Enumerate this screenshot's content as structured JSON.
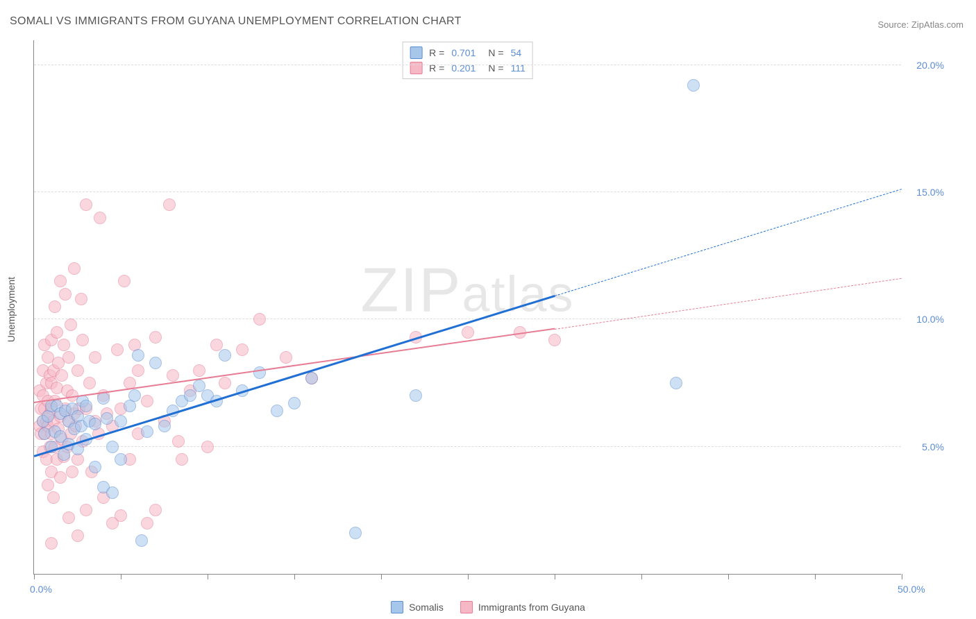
{
  "title": "SOMALI VS IMMIGRANTS FROM GUYANA UNEMPLOYMENT CORRELATION CHART",
  "source": "Source: ZipAtlas.com",
  "watermark": "ZIPatlas",
  "ylabel": "Unemployment",
  "chart": {
    "type": "scatter",
    "background_color": "#ffffff",
    "grid_color": "#dddddd",
    "axis_color": "#888888",
    "label_color": "#5b8dd6",
    "xlim": [
      0,
      50
    ],
    "ylim": [
      0,
      21
    ],
    "x_ticks": [
      0,
      5,
      10,
      15,
      20,
      25,
      30,
      35,
      40,
      45,
      50
    ],
    "x_tick_labels": {
      "0": "0.0%",
      "50": "50.0%"
    },
    "y_ticks": [
      5,
      10,
      15,
      20
    ],
    "y_tick_labels": {
      "5": "5.0%",
      "10": "10.0%",
      "15": "15.0%",
      "20": "20.0%"
    },
    "marker_radius": 9,
    "marker_opacity": 0.55,
    "series": {
      "somalis": {
        "label": "Somalis",
        "fill": "#a7c7ea",
        "stroke": "#5b8dd6",
        "trend_color": "#1f6fd4",
        "trend_width": 2.5,
        "r": "0.701",
        "n": "54",
        "trend": {
          "x1": 0,
          "y1": 4.6,
          "x2_solid": 30,
          "y2_solid": 10.9,
          "x2": 50,
          "y2": 15.1
        },
        "points": [
          [
            0.5,
            6.0
          ],
          [
            0.6,
            5.5
          ],
          [
            0.8,
            6.2
          ],
          [
            1.0,
            5.0
          ],
          [
            1.0,
            6.6
          ],
          [
            1.2,
            5.6
          ],
          [
            1.3,
            6.6
          ],
          [
            1.5,
            5.4
          ],
          [
            1.5,
            6.3
          ],
          [
            1.7,
            4.7
          ],
          [
            1.8,
            6.4
          ],
          [
            2.0,
            5.1
          ],
          [
            2.0,
            6.0
          ],
          [
            2.2,
            6.5
          ],
          [
            2.3,
            5.7
          ],
          [
            2.5,
            4.9
          ],
          [
            2.5,
            6.2
          ],
          [
            2.7,
            5.8
          ],
          [
            2.8,
            6.8
          ],
          [
            3.0,
            5.3
          ],
          [
            3.0,
            6.6
          ],
          [
            3.2,
            6.0
          ],
          [
            3.5,
            4.2
          ],
          [
            3.5,
            5.9
          ],
          [
            4.0,
            3.4
          ],
          [
            4.0,
            6.9
          ],
          [
            4.2,
            6.1
          ],
          [
            4.5,
            5.0
          ],
          [
            4.5,
            3.2
          ],
          [
            5.0,
            6.0
          ],
          [
            5.0,
            4.5
          ],
          [
            5.5,
            6.6
          ],
          [
            5.8,
            7.0
          ],
          [
            6.0,
            8.6
          ],
          [
            6.2,
            1.3
          ],
          [
            6.5,
            5.6
          ],
          [
            7.0,
            8.3
          ],
          [
            7.5,
            5.8
          ],
          [
            8.0,
            6.4
          ],
          [
            8.5,
            6.8
          ],
          [
            9.0,
            7.0
          ],
          [
            9.5,
            7.4
          ],
          [
            10.0,
            7.0
          ],
          [
            10.5,
            6.8
          ],
          [
            11.0,
            8.6
          ],
          [
            12.0,
            7.2
          ],
          [
            13.0,
            7.9
          ],
          [
            14.0,
            6.4
          ],
          [
            15.0,
            6.7
          ],
          [
            16.0,
            7.7
          ],
          [
            18.5,
            1.6
          ],
          [
            22.0,
            7.0
          ],
          [
            37.0,
            7.5
          ],
          [
            38.0,
            19.2
          ]
        ]
      },
      "guyana": {
        "label": "Immigrants from Guyana",
        "fill": "#f7b8c6",
        "stroke": "#e77c94",
        "trend_color": "#e77c94",
        "trend_width": 2,
        "r": "0.201",
        "n": "111",
        "trend": {
          "x1": 0,
          "y1": 6.7,
          "x2_solid": 30,
          "y2_solid": 9.6,
          "x2": 50,
          "y2": 11.6
        },
        "points": [
          [
            0.3,
            5.8
          ],
          [
            0.3,
            7.2
          ],
          [
            0.4,
            5.5
          ],
          [
            0.4,
            6.5
          ],
          [
            0.5,
            4.8
          ],
          [
            0.5,
            6.0
          ],
          [
            0.5,
            7.0
          ],
          [
            0.5,
            8.0
          ],
          [
            0.6,
            5.5
          ],
          [
            0.6,
            6.5
          ],
          [
            0.6,
            9.0
          ],
          [
            0.7,
            4.5
          ],
          [
            0.7,
            6.0
          ],
          [
            0.7,
            7.5
          ],
          [
            0.8,
            3.5
          ],
          [
            0.8,
            5.8
          ],
          [
            0.8,
            6.8
          ],
          [
            0.8,
            8.5
          ],
          [
            0.9,
            5.0
          ],
          [
            0.9,
            6.3
          ],
          [
            0.9,
            7.8
          ],
          [
            1.0,
            4.0
          ],
          [
            1.0,
            5.5
          ],
          [
            1.0,
            6.5
          ],
          [
            1.0,
            7.5
          ],
          [
            1.0,
            9.2
          ],
          [
            1.1,
            3.0
          ],
          [
            1.1,
            6.0
          ],
          [
            1.1,
            8.0
          ],
          [
            1.2,
            5.0
          ],
          [
            1.2,
            6.8
          ],
          [
            1.2,
            10.5
          ],
          [
            1.3,
            4.5
          ],
          [
            1.3,
            7.3
          ],
          [
            1.3,
            9.5
          ],
          [
            1.4,
            5.7
          ],
          [
            1.4,
            8.3
          ],
          [
            1.5,
            3.8
          ],
          [
            1.5,
            6.2
          ],
          [
            1.5,
            11.5
          ],
          [
            1.6,
            5.3
          ],
          [
            1.6,
            7.8
          ],
          [
            1.7,
            4.6
          ],
          [
            1.7,
            9.0
          ],
          [
            1.8,
            6.5
          ],
          [
            1.8,
            11.0
          ],
          [
            1.9,
            5.0
          ],
          [
            1.9,
            7.2
          ],
          [
            2.0,
            2.2
          ],
          [
            2.0,
            6.0
          ],
          [
            2.0,
            8.5
          ],
          [
            2.1,
            5.5
          ],
          [
            2.1,
            9.8
          ],
          [
            2.2,
            4.0
          ],
          [
            2.2,
            7.0
          ],
          [
            2.3,
            6.3
          ],
          [
            2.3,
            12.0
          ],
          [
            2.4,
            5.8
          ],
          [
            2.5,
            1.5
          ],
          [
            2.5,
            4.5
          ],
          [
            2.5,
            8.0
          ],
          [
            2.6,
            6.5
          ],
          [
            2.7,
            10.8
          ],
          [
            2.8,
            5.2
          ],
          [
            2.8,
            9.2
          ],
          [
            3.0,
            2.5
          ],
          [
            3.0,
            6.5
          ],
          [
            3.0,
            14.5
          ],
          [
            3.2,
            7.5
          ],
          [
            3.3,
            4.0
          ],
          [
            3.5,
            6.0
          ],
          [
            3.5,
            8.5
          ],
          [
            3.7,
            5.5
          ],
          [
            3.8,
            14.0
          ],
          [
            4.0,
            3.0
          ],
          [
            4.0,
            7.0
          ],
          [
            4.2,
            6.3
          ],
          [
            4.5,
            2.0
          ],
          [
            4.5,
            5.8
          ],
          [
            4.8,
            8.8
          ],
          [
            5.0,
            2.3
          ],
          [
            5.0,
            6.5
          ],
          [
            5.2,
            11.5
          ],
          [
            5.5,
            4.5
          ],
          [
            5.5,
            7.5
          ],
          [
            5.8,
            9.0
          ],
          [
            6.0,
            5.5
          ],
          [
            6.0,
            8.0
          ],
          [
            6.5,
            2.0
          ],
          [
            6.5,
            6.8
          ],
          [
            7.0,
            2.5
          ],
          [
            7.0,
            9.3
          ],
          [
            7.5,
            6.0
          ],
          [
            7.8,
            14.5
          ],
          [
            8.0,
            7.8
          ],
          [
            8.3,
            5.2
          ],
          [
            8.5,
            4.5
          ],
          [
            9.0,
            7.2
          ],
          [
            9.5,
            8.0
          ],
          [
            10.0,
            5.0
          ],
          [
            10.5,
            9.0
          ],
          [
            11.0,
            7.5
          ],
          [
            12.0,
            8.8
          ],
          [
            13.0,
            10.0
          ],
          [
            14.5,
            8.5
          ],
          [
            16.0,
            7.7
          ],
          [
            22.0,
            9.3
          ],
          [
            25.0,
            9.5
          ],
          [
            28.0,
            9.5
          ],
          [
            30.0,
            9.2
          ],
          [
            1.0,
            1.2
          ]
        ]
      }
    }
  },
  "legend_top": {
    "rows": [
      {
        "swatch_fill": "#a7c7ea",
        "swatch_stroke": "#5b8dd6",
        "r": "0.701",
        "n": "54"
      },
      {
        "swatch_fill": "#f7b8c6",
        "swatch_stroke": "#e77c94",
        "r": "0.201",
        "n": "111"
      }
    ],
    "r_label": "R =",
    "n_label": "N ="
  },
  "legend_bottom": {
    "items": [
      {
        "swatch_fill": "#a7c7ea",
        "swatch_stroke": "#5b8dd6",
        "label": "Somalis"
      },
      {
        "swatch_fill": "#f7b8c6",
        "swatch_stroke": "#e77c94",
        "label": "Immigrants from Guyana"
      }
    ]
  }
}
